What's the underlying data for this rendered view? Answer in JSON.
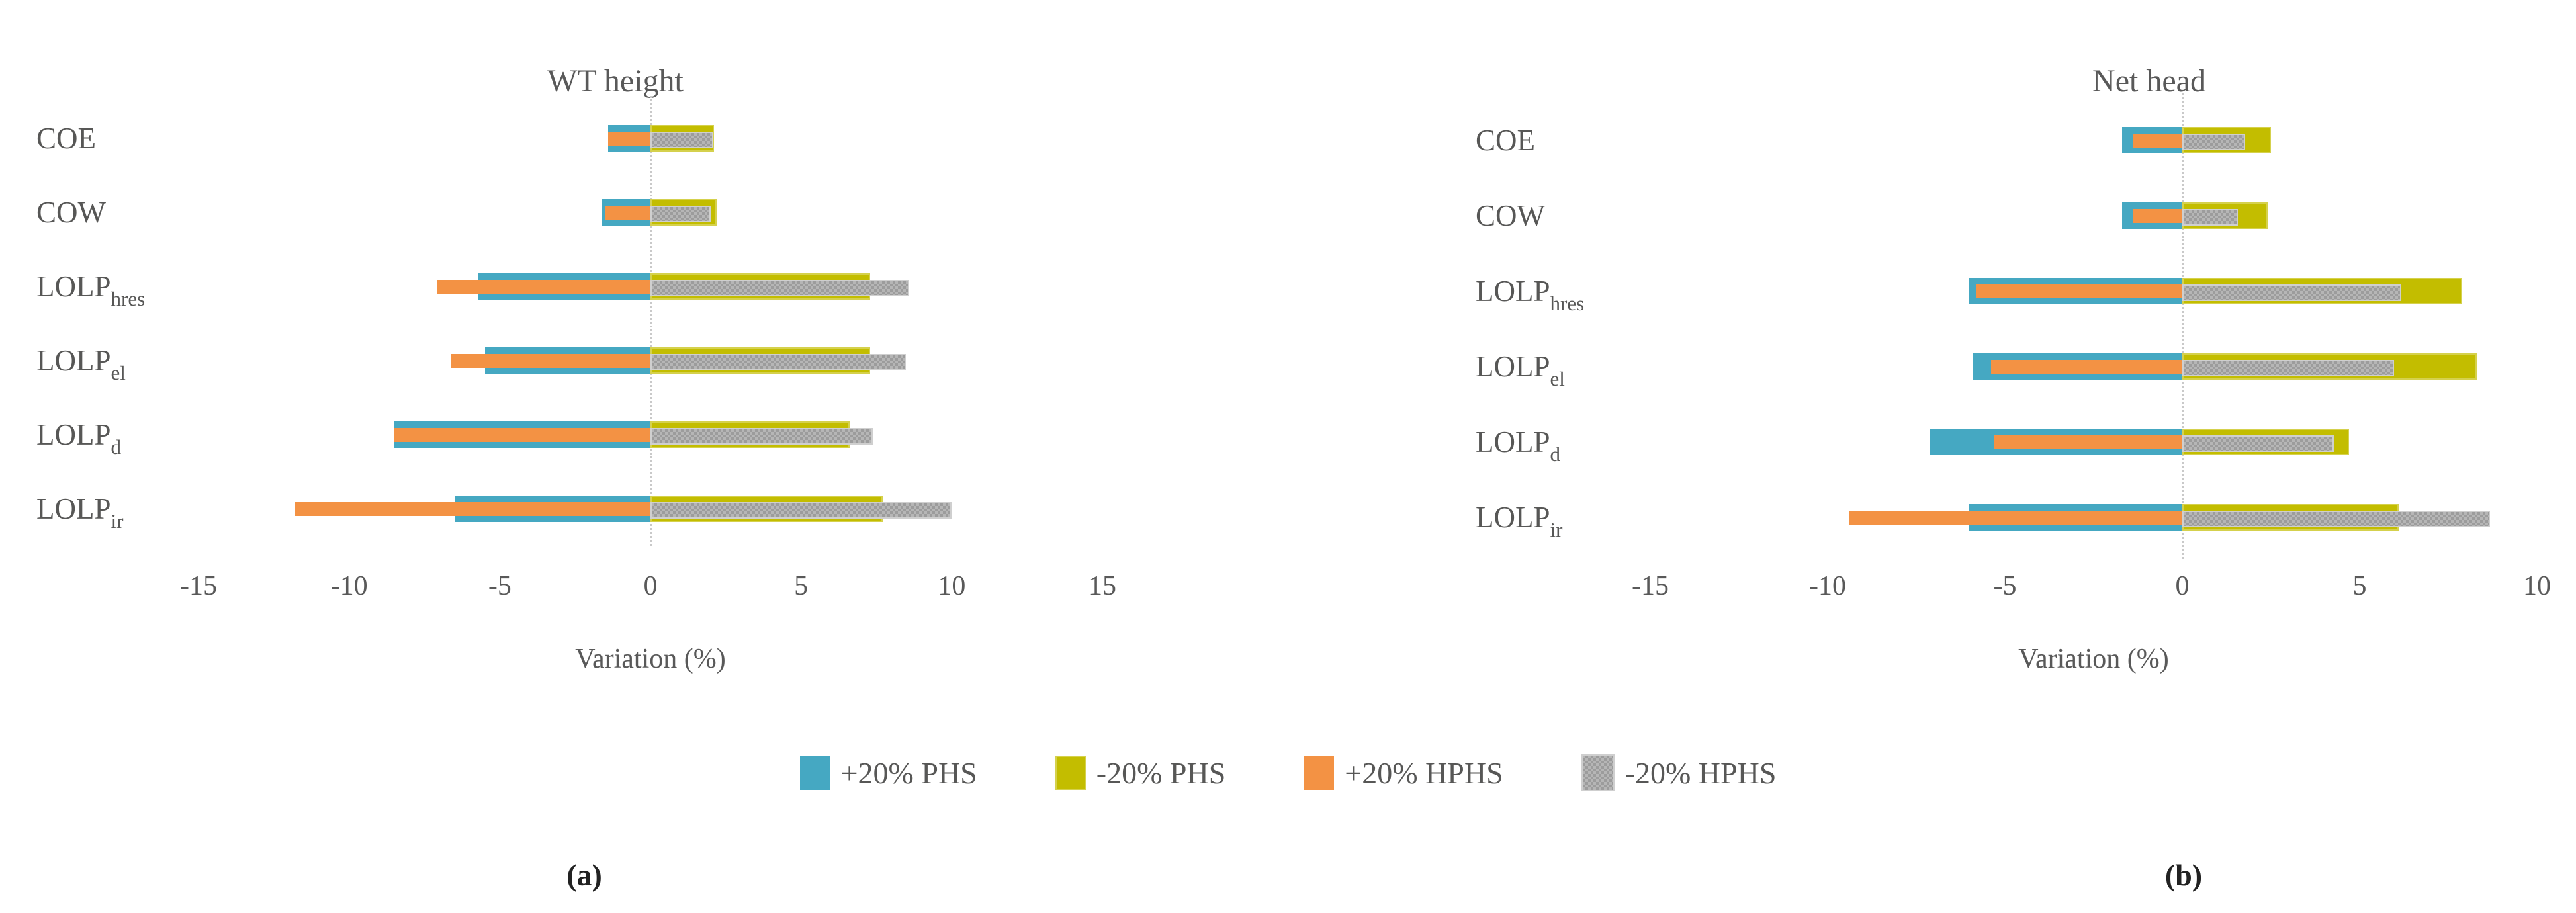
{
  "figure_colors": {
    "phs_plus": "#45a8c2",
    "phs_minus": "#c3bd00",
    "hphs_plus": "#f39244",
    "hphs_minus": "#a6a6a6",
    "text": "#575756",
    "gridline": "#c9c9c9"
  },
  "legend": {
    "items": [
      {
        "label": "+20% PHS",
        "color_key": "phs_plus"
      },
      {
        "label": "-20% PHS",
        "color_key": "phs_minus"
      },
      {
        "label": "+20% HPHS",
        "color_key": "hphs_plus"
      },
      {
        "label": "-20% HPHS",
        "color_key": "hphs_minus"
      }
    ]
  },
  "captions": {
    "a": "(a)",
    "b": "(b)"
  },
  "chart_data": [
    {
      "type": "bar",
      "orientation": "horizontal",
      "title": "WT height",
      "xlabel": "Variation (%)",
      "xlim": [
        -15,
        15
      ],
      "xticks": [
        "-15",
        "-10",
        "-5",
        "0",
        "5",
        "10",
        "15"
      ],
      "grid": "zero-line-only",
      "legend_position": "bottom",
      "categories": [
        {
          "base": "COE",
          "sub": ""
        },
        {
          "base": "COW",
          "sub": ""
        },
        {
          "base": "LOLP",
          "sub": "hres"
        },
        {
          "base": "LOLP",
          "sub": "el"
        },
        {
          "base": "LOLP",
          "sub": "d"
        },
        {
          "base": "LOLP",
          "sub": "ir"
        }
      ],
      "series": [
        {
          "name": "+20% PHS",
          "color_key": "phs_plus",
          "values": [
            -1.4,
            -1.6,
            -5.7,
            -5.5,
            -8.5,
            -6.5
          ]
        },
        {
          "name": "-20% PHS",
          "color_key": "phs_minus",
          "values": [
            2.1,
            2.2,
            7.3,
            7.3,
            6.6,
            7.7
          ]
        },
        {
          "name": "+20% HPHS",
          "color_key": "hphs_plus",
          "values": [
            -1.4,
            -1.5,
            -7.1,
            -6.6,
            -8.5,
            -11.8
          ]
        },
        {
          "name": "-20% HPHS",
          "color_key": "hphs_minus",
          "values": [
            2.0,
            1.9,
            8.5,
            8.4,
            7.3,
            9.9
          ]
        }
      ]
    },
    {
      "type": "bar",
      "orientation": "horizontal",
      "title": "Net head",
      "xlabel": "Variation (%)",
      "xlim": [
        -15,
        10
      ],
      "xticks": [
        "-15",
        "-10",
        "-5",
        "0",
        "5",
        "10"
      ],
      "grid": "zero-line-only",
      "legend_position": "bottom",
      "categories": [
        {
          "base": "COE",
          "sub": ""
        },
        {
          "base": "COW",
          "sub": ""
        },
        {
          "base": "LOLP",
          "sub": "hres"
        },
        {
          "base": "LOLP",
          "sub": "el"
        },
        {
          "base": "LOLP",
          "sub": "d"
        },
        {
          "base": "LOLP",
          "sub": "ir"
        }
      ],
      "series": [
        {
          "name": "+20% PHS",
          "color_key": "phs_plus",
          "values": [
            -1.7,
            -1.7,
            -6.0,
            -5.9,
            -7.1,
            -6.0
          ]
        },
        {
          "name": "-20% PHS",
          "color_key": "phs_minus",
          "values": [
            2.5,
            2.4,
            7.9,
            8.3,
            4.7,
            6.1
          ]
        },
        {
          "name": "+20% HPHS",
          "color_key": "hphs_plus",
          "values": [
            -1.4,
            -1.4,
            -5.8,
            -5.4,
            -5.3,
            -9.4
          ]
        },
        {
          "name": "-20% HPHS",
          "color_key": "hphs_minus",
          "values": [
            1.7,
            1.5,
            6.1,
            5.9,
            4.2,
            8.6
          ]
        }
      ]
    }
  ]
}
